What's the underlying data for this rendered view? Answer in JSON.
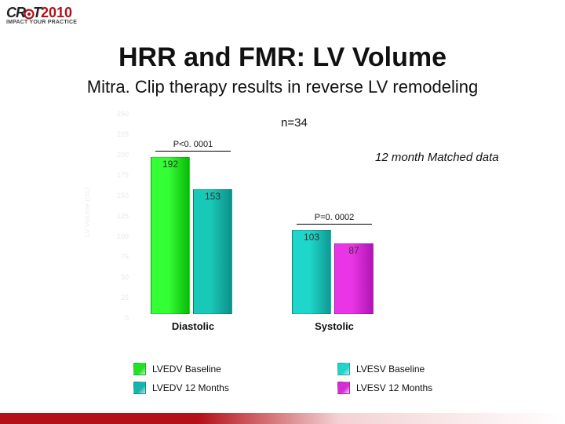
{
  "logo": {
    "brand_left": "CR",
    "brand_right": "T",
    "year": "2010",
    "tagline": "IMPACT YOUR PRACTICE"
  },
  "title": "HRR and FMR: LV Volume",
  "subtitle": "Mitra. Clip therapy results in reverse LV remodeling",
  "n_label": "n=34",
  "matched_label": "12 month Matched data",
  "chart": {
    "type": "bar",
    "ylim": [
      0,
      250
    ],
    "ytick_step": 25,
    "ylabel": "LV Volume (mL)",
    "tick_color": "#e8e8e8",
    "groups": [
      {
        "name": "Diastolic",
        "p_label": "P<0. 0001",
        "bars": [
          {
            "label": "192",
            "value": 192,
            "color_top": "#34ff34",
            "color_bottom": "#0ab90a",
            "legend": "LVEDV Baseline"
          },
          {
            "label": "153",
            "value": 153,
            "color_top": "#17c9b6",
            "color_bottom": "#0e8f89",
            "legend": "LVEDV 12 Months"
          }
        ]
      },
      {
        "name": "Systolic",
        "p_label": "P=0. 0002",
        "bars": [
          {
            "label": "103",
            "value": 103,
            "color_top": "#1fd6ca",
            "color_bottom": "#0e9a93",
            "legend": "LVESV Baseline"
          },
          {
            "label": "87",
            "value": 87,
            "color_top": "#e935e6",
            "color_bottom": "#b015b3",
            "legend": "LVESV 12 Months"
          }
        ]
      }
    ]
  },
  "colors": {
    "accent": "#b41018",
    "text": "#111111",
    "legend_swatches": [
      "#1fe41f",
      "#13b5ac",
      "#1fd6ca",
      "#d72bd6"
    ]
  }
}
